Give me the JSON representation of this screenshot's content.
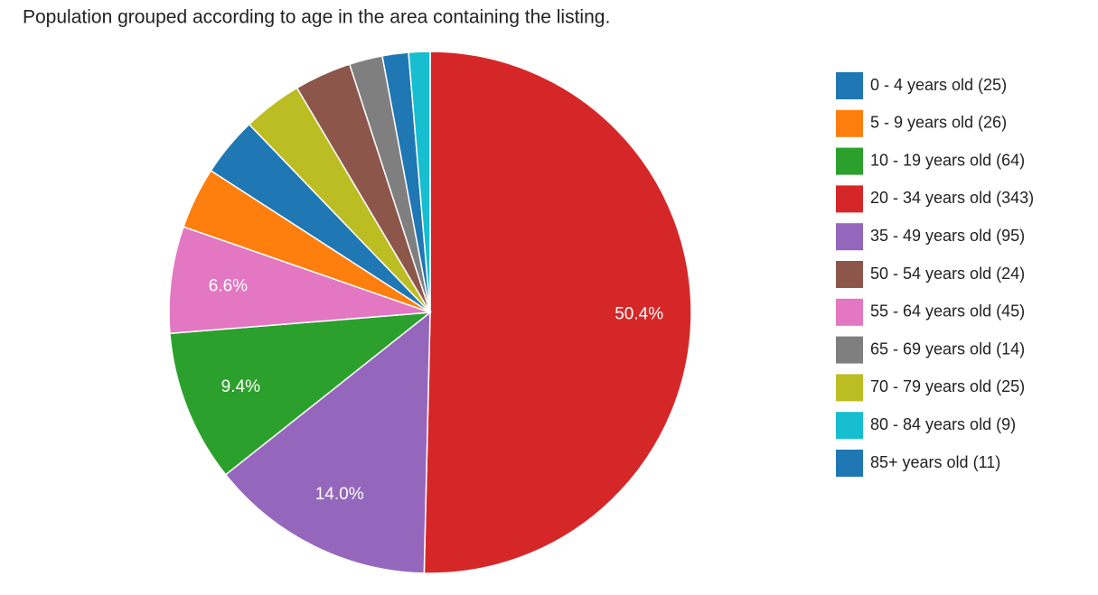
{
  "chart_data": {
    "type": "pie",
    "title": "Population grouped according to age in the area containing the listing.",
    "categories": [
      "0 - 4 years old (25)",
      "5 - 9 years old (26)",
      "10 - 19 years old (64)",
      "20 - 34 years old (343)",
      "35 - 49 years old (95)",
      "50 - 54 years old (24)",
      "55 - 64 years old (45)",
      "65 - 69 years old (14)",
      "70 - 79 years old (25)",
      "80 - 84 years old (9)",
      "85+ years old (11)"
    ],
    "values": [
      25,
      26,
      64,
      343,
      95,
      24,
      45,
      14,
      25,
      9,
      11
    ],
    "value_labels": [
      null,
      null,
      "9.4%",
      "50.4%",
      "14.0%",
      null,
      "6.6%",
      null,
      null,
      null,
      null
    ],
    "colors": [
      "#1f77b4",
      "#ff7f0e",
      "#2ca02c",
      "#d62728",
      "#9467bd",
      "#8c564b",
      "#e377c2",
      "#7f7f7f",
      "#bcbd22",
      "#17becf",
      "#1f77b4"
    ],
    "slice_order": "descending",
    "legend": "right"
  }
}
